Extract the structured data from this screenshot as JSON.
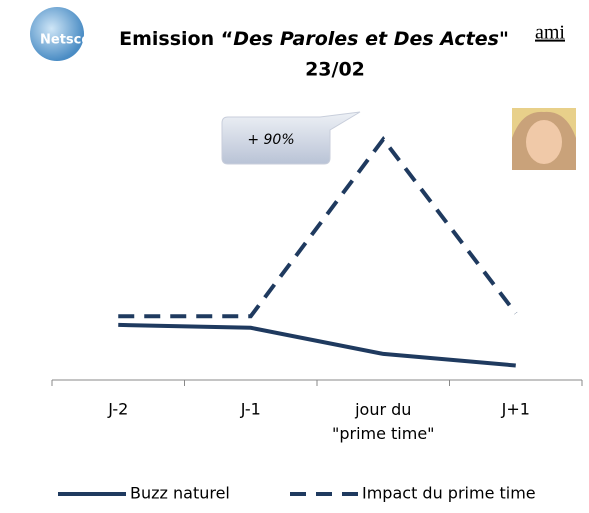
{
  "chart_data": {
    "type": "line",
    "logo_left": "Netscope",
    "logo_right": "ami",
    "title_parts": [
      "Emission “",
      "Des Paroles et Des Actes",
      "\""
    ],
    "subtitle": "23/02",
    "annotation": "+ 90%",
    "categories": [
      "J-2",
      "J-1",
      "jour du\n\"prime time\"",
      "J+1"
    ],
    "series": [
      {
        "name": "Buzz naturel",
        "color": "#1f3a5f",
        "dash": false,
        "values": [
          19,
          18,
          9,
          5
        ]
      },
      {
        "name": "Impact du prime time",
        "color": "#1f3a5f",
        "dash": true,
        "values": [
          22,
          22,
          83,
          23
        ]
      }
    ],
    "ylim": [
      0,
      100
    ]
  }
}
